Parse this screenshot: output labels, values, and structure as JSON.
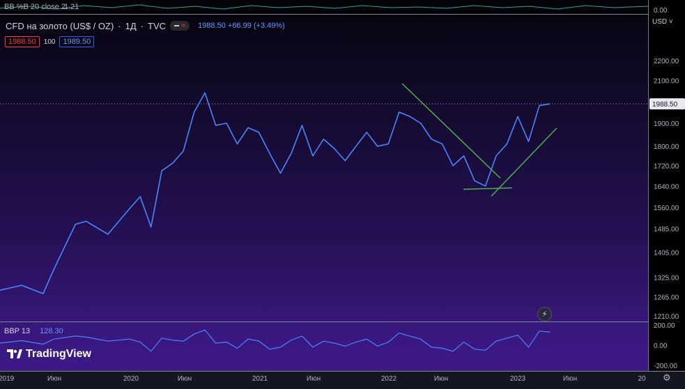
{
  "top_indicator": {
    "name": "BB %B 20 close 2",
    "value": "1.21",
    "axis_label": "0.00"
  },
  "header": {
    "symbol": "CFD на золото (US$ / OZ)",
    "interval": "1Д",
    "source": "TVC",
    "last": "1988.50",
    "change": "+66.99 (+3.49%)"
  },
  "ohlc_boxes": {
    "sell": "1988.50",
    "lot": "100",
    "buy": "1989.50"
  },
  "currency": "USD",
  "price_badge": "1988.50",
  "bbp": {
    "name": "BBP 13",
    "value": "128.30"
  },
  "logo": {
    "text": "TradingView"
  },
  "colors": {
    "line": "#4a86ff",
    "trendline": "#4caf50",
    "badge": "#e8eaf0"
  },
  "chart_data": {
    "type": "line",
    "yscale": "log",
    "price_ticks": [
      "2200.00",
      "2100.00",
      "1900.00",
      "1800.00",
      "1720.00",
      "1640.00",
      "1560.00",
      "1485.00",
      "1405.00",
      "1325.00",
      "1265.00",
      "1210.00"
    ],
    "bbp_ticks": [
      "200.00",
      "0.00",
      "-200.00"
    ],
    "x_ticks": [
      "2019",
      "Июн",
      "2020",
      "Июн",
      "2021",
      "Июн",
      "2022",
      "Июн",
      "2023",
      "Июн",
      "20"
    ],
    "series": [
      {
        "x": [
          "2019-01",
          "2019-03",
          "2019-05",
          "2019-06",
          "2019-08",
          "2019-09",
          "2019-11",
          "2020-01",
          "2020-02",
          "2020-03",
          "2020-04",
          "2020-05",
          "2020-06",
          "2020-07",
          "2020-08",
          "2020-09",
          "2020-10",
          "2020-11",
          "2020-12",
          "2021-01",
          "2021-02",
          "2021-03",
          "2021-04",
          "2021-05",
          "2021-06",
          "2021-07",
          "2021-08",
          "2021-09",
          "2021-10",
          "2021-11",
          "2021-12",
          "2022-01",
          "2022-02",
          "2022-03",
          "2022-04",
          "2022-05",
          "2022-06",
          "2022-07",
          "2022-08",
          "2022-09",
          "2022-10",
          "2022-11",
          "2022-12",
          "2023-01",
          "2023-02",
          "2023-03",
          "2023-04"
        ],
        "values": [
          1285,
          1300,
          1275,
          1350,
          1500,
          1510,
          1465,
          1555,
          1600,
          1490,
          1700,
          1730,
          1780,
          1950,
          2040,
          1890,
          1900,
          1810,
          1880,
          1860,
          1770,
          1690,
          1770,
          1890,
          1760,
          1830,
          1790,
          1740,
          1800,
          1860,
          1800,
          1810,
          1950,
          1930,
          1900,
          1830,
          1810,
          1720,
          1760,
          1660,
          1640,
          1760,
          1810,
          1930,
          1820,
          1980,
          1988
        ]
      }
    ],
    "bbp_values": [
      20,
      45,
      10,
      60,
      90,
      80,
      40,
      60,
      30,
      -60,
      70,
      50,
      40,
      110,
      150,
      20,
      30,
      -30,
      60,
      40,
      -40,
      -20,
      50,
      90,
      -20,
      40,
      20,
      -10,
      30,
      60,
      -10,
      30,
      120,
      90,
      60,
      -20,
      -30,
      -60,
      30,
      -40,
      -50,
      40,
      70,
      100,
      -20,
      140,
      128
    ]
  }
}
